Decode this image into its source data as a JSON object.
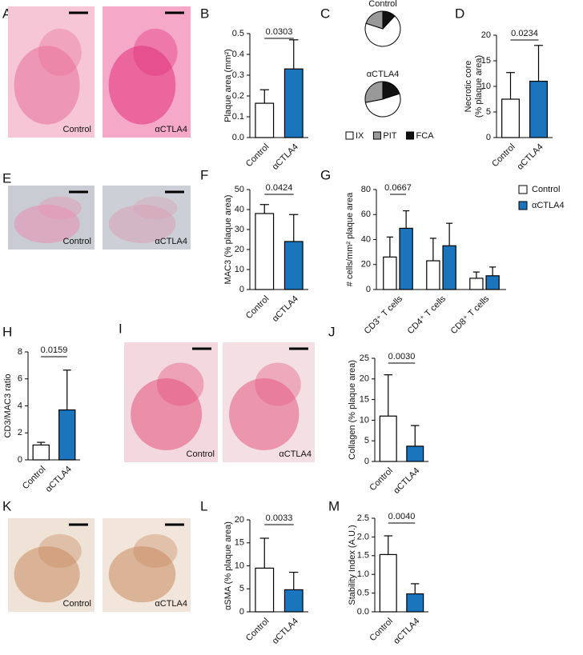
{
  "images": [
    {
      "panel": "A",
      "labels": [
        "Control",
        "αCTLA4"
      ]
    },
    {
      "panel": "E",
      "labels": [
        "Control",
        "αCTLA4"
      ]
    },
    {
      "panel": "I",
      "labels": [
        "Control",
        "αCTLA4"
      ]
    },
    {
      "panel": "K",
      "labels": [
        "Control",
        "αCTLA4"
      ]
    }
  ],
  "chart_data": [
    {
      "type": "bar",
      "panel": "B",
      "ylabel": "Plaque area (mm²)",
      "categories": [
        "Control",
        "αCTLA4"
      ],
      "values": [
        0.165,
        0.33
      ],
      "errors": [
        0.065,
        0.14
      ],
      "colors": [
        "#ffffff",
        "#1a75bc"
      ],
      "ylim": [
        0,
        0.5
      ],
      "yticks": [
        {
          "value": 0,
          "label": "0.0"
        },
        0.1,
        0.2,
        0.3,
        0.4,
        0.5
      ],
      "annotation": "0.0303"
    },
    {
      "type": "pie",
      "panel": "C",
      "categories": [
        "IX",
        "PIT",
        "FCA"
      ],
      "colors": [
        "#ffffff",
        "#999999",
        "#111111"
      ],
      "pies": [
        {
          "title": "Control",
          "values": [
            68,
            20,
            12
          ]
        },
        {
          "title": "αCTLA4",
          "values": [
            52,
            28,
            20
          ]
        }
      ]
    },
    {
      "type": "bar",
      "panel": "D",
      "ylabel": [
        "Necrotic core",
        "(% plaque area)"
      ],
      "categories": [
        "Control",
        "αCTLA4"
      ],
      "values": [
        7.5,
        11
      ],
      "errors": [
        5.2,
        7
      ],
      "colors": [
        "#ffffff",
        "#1a75bc"
      ],
      "ylim": [
        0,
        20
      ],
      "yticks": [
        0,
        5,
        10,
        15,
        20
      ],
      "annotation": "0.0234"
    },
    {
      "type": "bar",
      "panel": "F",
      "ylabel": "MAC3 (% plaque area)",
      "categories": [
        "Control",
        "αCTLA4"
      ],
      "values": [
        38,
        24
      ],
      "errors": [
        4.5,
        13.5
      ],
      "colors": [
        "#ffffff",
        "#1a75bc"
      ],
      "ylim": [
        0,
        50
      ],
      "yticks": [
        0,
        10,
        20,
        30,
        40,
        50
      ],
      "annotation": "0.0424"
    },
    {
      "type": "grouped",
      "panel": "G",
      "ylabel": "# cells/mm² plaque area",
      "categories": [
        "CD3⁺ T cells",
        "CD4⁺ T cells",
        "CD8⁺ T cells"
      ],
      "series": [
        {
          "name": "Control",
          "color": "#ffffff",
          "values": [
            26,
            23,
            9
          ],
          "errors": [
            16,
            18,
            5
          ]
        },
        {
          "name": "αCTLA4",
          "color": "#1a75bc",
          "values": [
            49,
            35,
            11
          ],
          "errors": [
            14,
            18,
            7
          ]
        }
      ],
      "ylim": [
        0,
        80
      ],
      "yticks": [
        0,
        20,
        40,
        60,
        80
      ],
      "annotation": "0.0667"
    },
    {
      "type": "bar",
      "panel": "H",
      "ylabel": "CD3/MAC3 ratio",
      "categories": [
        "Control",
        "αCTLA4"
      ],
      "values": [
        1.1,
        3.7
      ],
      "errors": [
        0.2,
        2.95
      ],
      "colors": [
        "#ffffff",
        "#1a75bc"
      ],
      "ylim": [
        0,
        8
      ],
      "yticks": [
        0,
        2,
        4,
        6,
        8
      ],
      "annotation": "0.0159"
    },
    {
      "type": "bar",
      "panel": "J",
      "ylabel": "Collagen (% plaque area)",
      "categories": [
        "Control",
        "αCTLA4"
      ],
      "values": [
        11,
        3.7
      ],
      "errors": [
        10,
        5
      ],
      "colors": [
        "#ffffff",
        "#1a75bc"
      ],
      "ylim": [
        0,
        25
      ],
      "yticks": [
        0,
        5,
        10,
        15,
        20,
        25
      ],
      "annotation": "0.0030"
    },
    {
      "type": "bar",
      "panel": "L",
      "ylabel": "αSMA (% plaque area)",
      "categories": [
        "Control",
        "αCTLA4"
      ],
      "values": [
        9.5,
        4.8
      ],
      "errors": [
        6.5,
        3.8
      ],
      "colors": [
        "#ffffff",
        "#1a75bc"
      ],
      "ylim": [
        0,
        20
      ],
      "yticks": [
        0,
        5,
        10,
        15,
        20
      ],
      "annotation": "0.0033"
    },
    {
      "type": "bar",
      "panel": "M",
      "ylabel": "Stability Index (A.U.)",
      "categories": [
        "Control",
        "αCTLA4"
      ],
      "values": [
        1.53,
        0.48
      ],
      "errors": [
        0.5,
        0.27
      ],
      "colors": [
        "#ffffff",
        "#1a75bc"
      ],
      "ylim": [
        0,
        2.5
      ],
      "yticks": [
        {
          "value": 0,
          "label": "0.0"
        },
        0.5,
        {
          "value": 1,
          "label": "1.0"
        },
        1.5,
        {
          "value": 2,
          "label": "2.0"
        },
        2.5
      ],
      "annotation": "0.0040"
    }
  ]
}
